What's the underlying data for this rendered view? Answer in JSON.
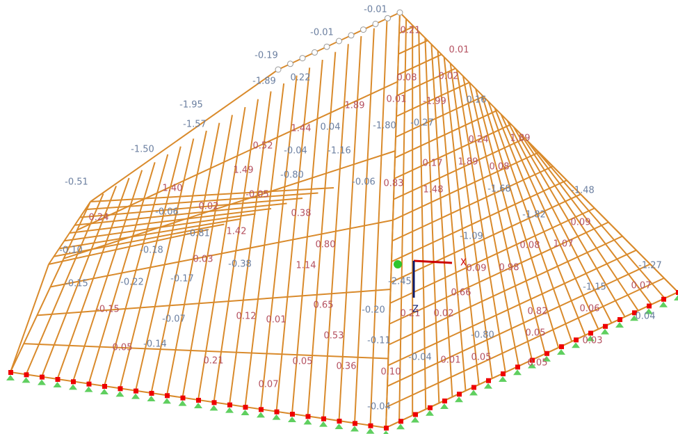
{
  "labels": [
    "-0.01",
    "0.21",
    "-0.01",
    "0.01",
    "-0.19",
    "0.02",
    "0.08",
    "-1.89",
    "0.22",
    "0.01",
    "-1.99",
    "0.16",
    "1.89",
    "-1.95",
    "-1.57",
    "1.44",
    "0.04",
    "-1.80",
    "-0.27",
    "0.24",
    "1.89",
    "-1.50",
    "0.52",
    "-0.04",
    "-1.16",
    "0.17",
    "1.89",
    "0.08",
    "1.49",
    "-0.80",
    "-0.06",
    "0.83",
    "1.48",
    "-1.68",
    "-1.48",
    "-0.51",
    "-0.05",
    "1.40",
    "0.02",
    "0.38",
    "-0.06",
    "-1.82",
    "0.09",
    "0.24",
    "-0.81",
    "1.42",
    "-1.09",
    "0.08",
    "1.07",
    "0.80",
    "-0.18",
    "-0.10",
    "0.03",
    "-0.38",
    "1.14",
    "0.09",
    "0.98",
    "-1.27",
    "-0.15",
    "-0.22",
    "-0.17",
    "-2.45",
    "0.66",
    "-1.15",
    "0.07",
    "-0.15",
    "0.65",
    "-0.20",
    "0.21",
    "0.02",
    "0.82",
    "0.06",
    "0.04",
    "-0.07",
    "0.12",
    "0.01",
    "-0.80",
    "0.05",
    "0.03",
    "-0.11",
    "0.53",
    "0.05",
    "-0.14",
    "-0.04",
    "0.01",
    "0.05",
    "0.05",
    "0.21",
    "0.05",
    "0.36",
    "0.10",
    "0.07",
    "-0.04"
  ],
  "axes": {
    "x": "X",
    "z": "Z"
  }
}
